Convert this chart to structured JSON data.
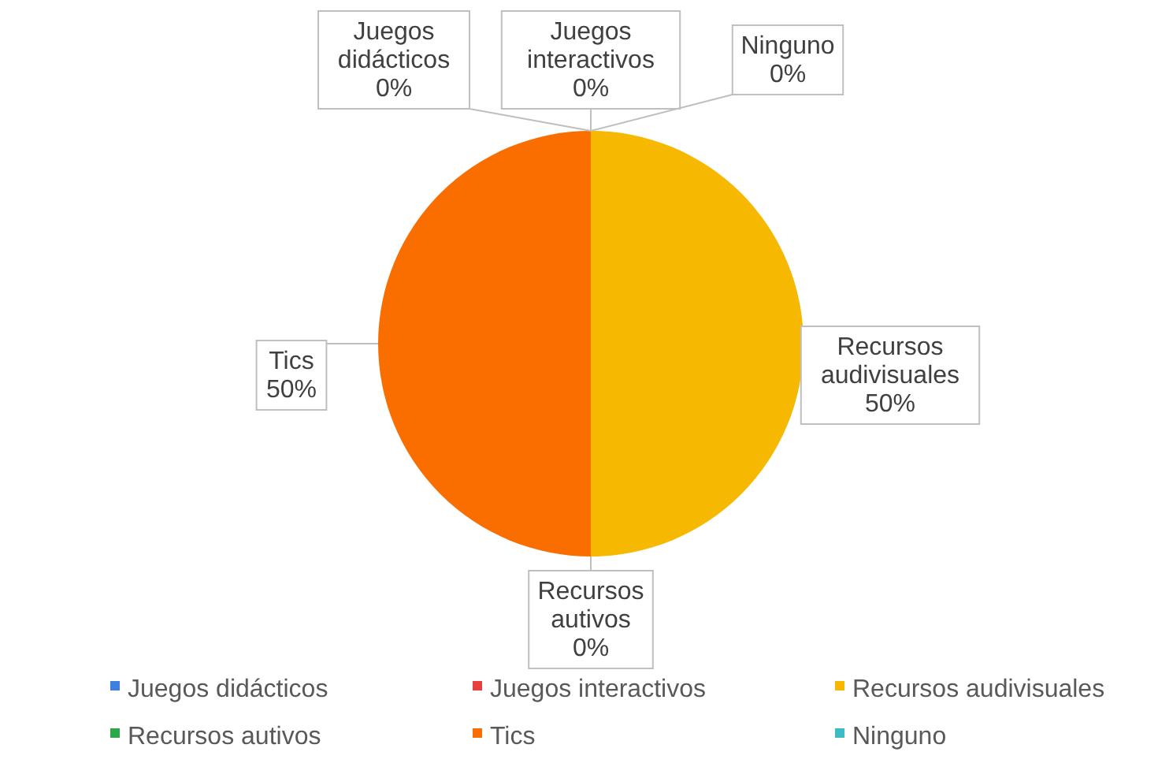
{
  "chart_data": {
    "type": "pie",
    "categories": [
      "Juegos didácticos",
      "Juegos interactivos",
      "Recursos audivisuales",
      "Recursos autivos",
      "Tics",
      "Ninguno"
    ],
    "values": [
      0,
      0,
      50,
      0,
      50,
      0
    ],
    "colors": [
      "#3f7fe0",
      "#e8413c",
      "#f6b800",
      "#2ea64a",
      "#fa6e00",
      "#3cbcc0"
    ],
    "value_labels": [
      "0%",
      "0%",
      "50%",
      "0%",
      "50%",
      "0%"
    ],
    "data_labels": true,
    "legend": "bottom"
  }
}
